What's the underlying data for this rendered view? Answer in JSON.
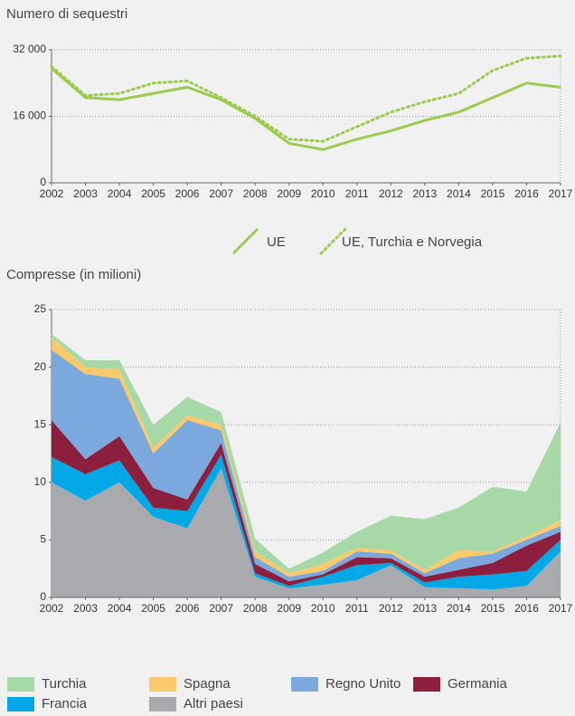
{
  "chart_data": [
    {
      "type": "line",
      "title": "Numero di sequestri",
      "categories": [
        "2002",
        "2003",
        "2004",
        "2005",
        "2006",
        "2007",
        "2008",
        "2009",
        "2010",
        "2011",
        "2012",
        "2013",
        "2014",
        "2015",
        "2016",
        "2017"
      ],
      "series": [
        {
          "name": "UE",
          "color": "#9bcb4f",
          "style": "solid",
          "values": [
            27500,
            20500,
            20000,
            21500,
            23000,
            20000,
            15500,
            9500,
            8000,
            10500,
            12500,
            15000,
            17000,
            20500,
            24000,
            23000
          ]
        },
        {
          "name": "UE, Turchia e Norvegia",
          "color": "#9bcb4f",
          "style": "dotted",
          "values": [
            28000,
            21000,
            21500,
            24000,
            24500,
            20500,
            16000,
            10500,
            10000,
            13500,
            17000,
            19500,
            21500,
            27000,
            30000,
            30500
          ]
        }
      ],
      "ylim": [
        0,
        32000
      ],
      "yticks": [
        0,
        {
          "value": 16000,
          "label": "16 000"
        },
        {
          "value": 32000,
          "label": "32 000"
        }
      ],
      "grid": true
    },
    {
      "type": "stacked_area",
      "title": "Compresse (in milioni)",
      "categories": [
        "2002",
        "2003",
        "2004",
        "2005",
        "2006",
        "2007",
        "2008",
        "2009",
        "2010",
        "2011",
        "2012",
        "2013",
        "2014",
        "2015",
        "2016",
        "2017"
      ],
      "series": [
        {
          "name": "Turchia",
          "color": "#a6d9a7",
          "values": [
            0.3,
            0.6,
            0.8,
            2.0,
            1.6,
            1.1,
            1.1,
            0.4,
            1.0,
            1.4,
            3.0,
            4.4,
            3.7,
            5.6,
            3.9,
            8.5
          ]
        },
        {
          "name": "Spagna",
          "color": "#fdca6b",
          "values": [
            1.1,
            0.6,
            0.8,
            0.5,
            0.4,
            0.5,
            0.5,
            0.3,
            0.6,
            0.3,
            0.3,
            0.3,
            0.7,
            0.2,
            0.3,
            0.5
          ]
        },
        {
          "name": "Regno Unito",
          "color": "#7ca9dd",
          "values": [
            6.1,
            7.4,
            5.0,
            3.0,
            6.9,
            1.1,
            0.6,
            0.4,
            0.3,
            0.5,
            0.4,
            0.3,
            1.0,
            0.8,
            0.5,
            0.5
          ]
        },
        {
          "name": "Germania",
          "color": "#8b1f3d",
          "values": [
            3.2,
            1.3,
            2.1,
            1.7,
            1.0,
            1.0,
            0.8,
            0.4,
            0.2,
            0.7,
            0.4,
            0.5,
            0.6,
            1.0,
            2.2,
            0.7
          ]
        },
        {
          "name": "Francia",
          "color": "#00a9e6",
          "values": [
            2.2,
            2.3,
            1.9,
            0.8,
            1.5,
            1.2,
            0.3,
            0.2,
            0.7,
            1.3,
            0.2,
            0.4,
            1.0,
            1.3,
            1.3,
            1.0
          ]
        },
        {
          "name": "Altri paesi",
          "color": "#a9aaad",
          "values": [
            10,
            8.4,
            10,
            7,
            6,
            11.2,
            1.8,
            0.8,
            1.1,
            1.5,
            2.8,
            0.9,
            0.8,
            0.7,
            1.0,
            4.0
          ]
        }
      ],
      "ylim": [
        0,
        25
      ],
      "yticks": [
        0,
        5,
        10,
        15,
        20,
        25
      ],
      "grid": true
    }
  ]
}
